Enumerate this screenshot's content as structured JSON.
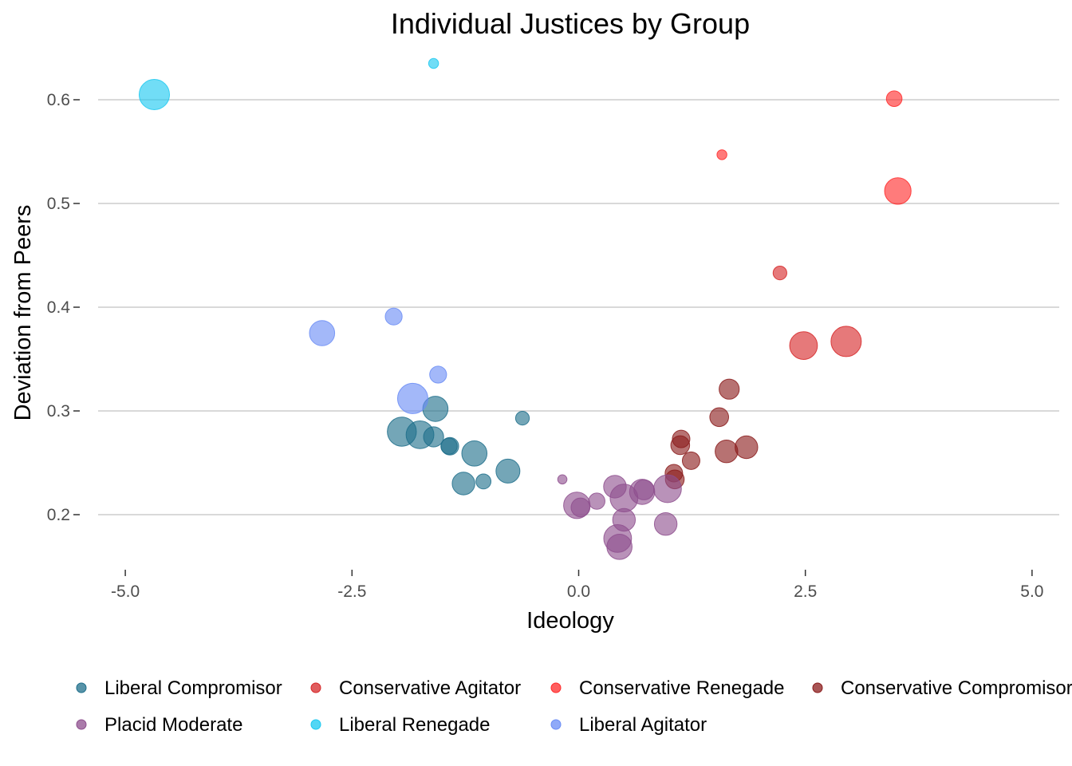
{
  "chart_data": {
    "type": "scatter",
    "title": "Individual Justices by Group",
    "xlabel": "Ideology",
    "ylabel": "Deviation from Peers",
    "xlim": [
      -5.3,
      5.3
    ],
    "ylim": [
      0.15,
      0.65
    ],
    "xticks": [
      -5.0,
      -2.5,
      0.0,
      2.5,
      5.0
    ],
    "xtick_labels": [
      "-5.0",
      "-2.5",
      "0.0",
      "2.5",
      "5.0"
    ],
    "yticks": [
      0.2,
      0.3,
      0.4,
      0.5,
      0.6
    ],
    "ytick_labels": [
      "0.2",
      "0.3",
      "0.4",
      "0.5",
      "0.6"
    ],
    "grid": "horizontal",
    "legend_position": "bottom",
    "series": [
      {
        "name": "Liberal Compromisor",
        "color": "#1f6f8b",
        "points": [
          {
            "x": -1.95,
            "y": 0.28,
            "size": 3.8
          },
          {
            "x": -1.75,
            "y": 0.277,
            "size": 3.6
          },
          {
            "x": -1.58,
            "y": 0.302,
            "size": 3.2
          },
          {
            "x": -1.6,
            "y": 0.275,
            "size": 2.4
          },
          {
            "x": -1.42,
            "y": 0.266,
            "size": 2.0
          },
          {
            "x": -1.43,
            "y": 0.266,
            "size": 1.8
          },
          {
            "x": -1.15,
            "y": 0.259,
            "size": 3.2
          },
          {
            "x": -1.27,
            "y": 0.23,
            "size": 2.8
          },
          {
            "x": -1.05,
            "y": 0.232,
            "size": 1.6
          },
          {
            "x": -0.78,
            "y": 0.242,
            "size": 3.0
          },
          {
            "x": -0.62,
            "y": 0.293,
            "size": 1.4
          }
        ]
      },
      {
        "name": "Conservative Agitator",
        "color": "#d62728",
        "points": [
          {
            "x": 2.48,
            "y": 0.363,
            "size": 3.6
          },
          {
            "x": 2.95,
            "y": 0.367,
            "size": 4.0
          },
          {
            "x": 2.22,
            "y": 0.433,
            "size": 1.4
          }
        ]
      },
      {
        "name": "Conservative Renegade",
        "color": "#ff2a2a",
        "points": [
          {
            "x": 3.48,
            "y": 0.601,
            "size": 1.7
          },
          {
            "x": 3.52,
            "y": 0.512,
            "size": 3.4
          },
          {
            "x": 1.58,
            "y": 0.547,
            "size": 0.8
          }
        ]
      },
      {
        "name": "Conservative Compromisor",
        "color": "#8b1c1c",
        "points": [
          {
            "x": 1.66,
            "y": 0.321,
            "size": 2.4
          },
          {
            "x": 1.55,
            "y": 0.294,
            "size": 2.2
          },
          {
            "x": 1.85,
            "y": 0.265,
            "size": 2.8
          },
          {
            "x": 1.63,
            "y": 0.261,
            "size": 2.8
          },
          {
            "x": 1.13,
            "y": 0.273,
            "size": 2.0
          },
          {
            "x": 1.12,
            "y": 0.267,
            "size": 2.2
          },
          {
            "x": 1.24,
            "y": 0.252,
            "size": 2.0
          },
          {
            "x": 1.05,
            "y": 0.24,
            "size": 2.0
          },
          {
            "x": 1.06,
            "y": 0.234,
            "size": 2.2
          }
        ]
      },
      {
        "name": "Placid Moderate",
        "color": "#8e4f8e",
        "points": [
          {
            "x": -0.02,
            "y": 0.209,
            "size": 3.4
          },
          {
            "x": 0.02,
            "y": 0.207,
            "size": 2.2
          },
          {
            "x": 0.2,
            "y": 0.213,
            "size": 1.8
          },
          {
            "x": 0.4,
            "y": 0.227,
            "size": 2.8
          },
          {
            "x": 0.5,
            "y": 0.216,
            "size": 3.6
          },
          {
            "x": 0.7,
            "y": 0.222,
            "size": 3.2
          },
          {
            "x": 0.72,
            "y": 0.224,
            "size": 2.4
          },
          {
            "x": 0.98,
            "y": 0.225,
            "size": 3.6
          },
          {
            "x": 0.5,
            "y": 0.195,
            "size": 2.8
          },
          {
            "x": 0.96,
            "y": 0.191,
            "size": 2.8
          },
          {
            "x": 0.43,
            "y": 0.177,
            "size": 3.6
          },
          {
            "x": 0.45,
            "y": 0.169,
            "size": 3.2
          },
          {
            "x": -0.18,
            "y": 0.234,
            "size": 0.7
          }
        ]
      },
      {
        "name": "Liberal Renegade",
        "color": "#1ac8f0",
        "points": [
          {
            "x": -4.68,
            "y": 0.605,
            "size": 4.0
          },
          {
            "x": -1.6,
            "y": 0.635,
            "size": 0.8
          }
        ]
      },
      {
        "name": "Liberal Agitator",
        "color": "#6a8cf5",
        "points": [
          {
            "x": -2.83,
            "y": 0.375,
            "size": 3.2
          },
          {
            "x": -2.04,
            "y": 0.391,
            "size": 1.9
          },
          {
            "x": -1.83,
            "y": 0.312,
            "size": 4.0
          },
          {
            "x": -1.55,
            "y": 0.335,
            "size": 1.9
          }
        ]
      }
    ]
  }
}
